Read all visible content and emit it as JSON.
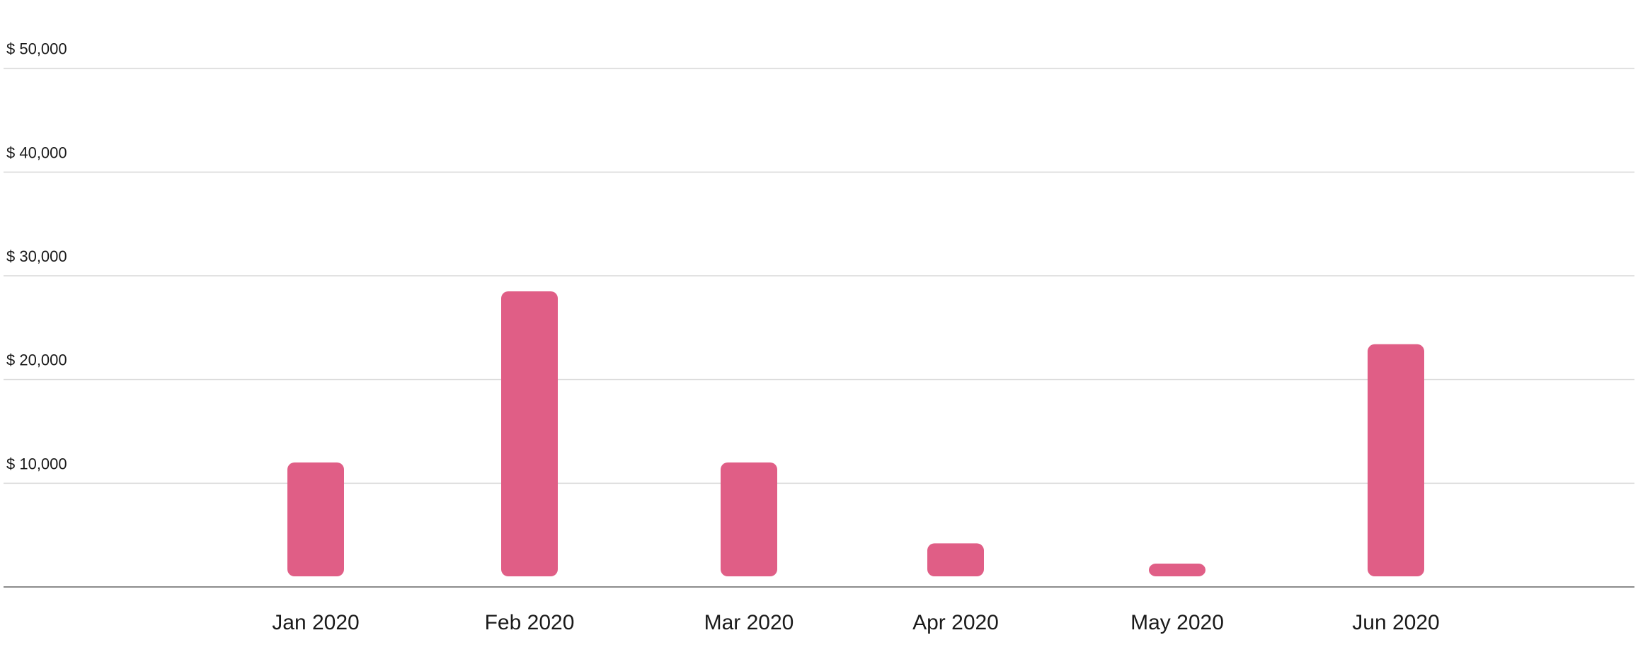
{
  "chart_data": {
    "type": "bar",
    "categories": [
      "Jan 2020",
      "Feb 2020",
      "Mar 2020",
      "Apr 2020",
      "May 2020",
      "Jun 2020"
    ],
    "values": [
      12000,
      28500,
      12000,
      4200,
      1400,
      23400
    ],
    "y_ticks": [
      10000,
      20000,
      30000,
      40000,
      50000
    ],
    "y_tick_labels": [
      "$ 10,000",
      "$ 20,000",
      "$ 30,000",
      "$ 40,000",
      "$ 50,000"
    ],
    "ylim": [
      0,
      51000
    ],
    "grid": true,
    "legend": "none",
    "title": "",
    "xlabel": "",
    "ylabel": "",
    "colors": {
      "bar": "#E05E86",
      "grid": "#D9D9D9",
      "axis": "#8C8C8C",
      "text": "#1A1A1A"
    }
  }
}
